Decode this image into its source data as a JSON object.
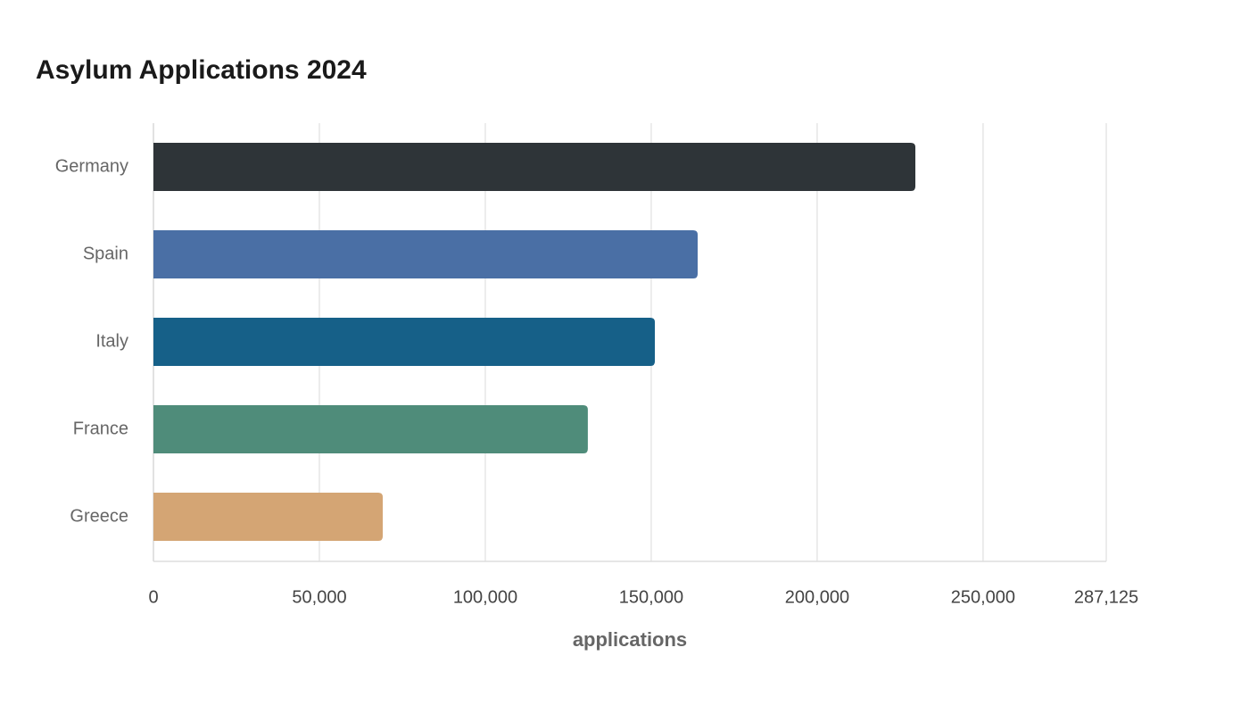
{
  "chart_data": {
    "type": "bar",
    "orientation": "horizontal",
    "title": "Asylum Applications 2024",
    "categories": [
      "Germany",
      "Spain",
      "Italy",
      "France",
      "Greece"
    ],
    "values": [
      229600,
      164000,
      151100,
      130900,
      69100
    ],
    "colors": [
      "#2e3438",
      "#4a6fa5",
      "#166088",
      "#4f8c7a",
      "#d4a574"
    ],
    "xlabel": "applications",
    "xlim": [
      0,
      287125
    ],
    "xticks": [
      0,
      {
        "value": 50000,
        "label": "50,000"
      },
      {
        "value": 100000,
        "label": "100,000"
      },
      {
        "value": 150000,
        "label": "150,000"
      },
      {
        "value": 200000,
        "label": "200,000"
      },
      {
        "value": 250000,
        "label": "250,000"
      },
      {
        "value": 287125,
        "label": "287,125"
      }
    ],
    "grid": true
  }
}
